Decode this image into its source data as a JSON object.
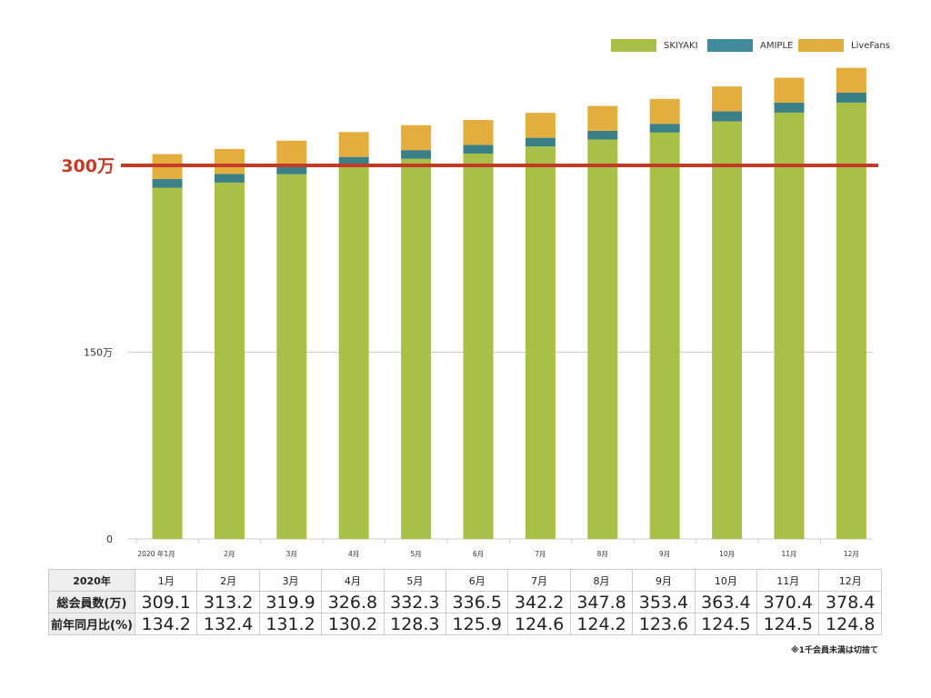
{
  "chart_data": {
    "type": "bar",
    "stacked": true,
    "categories": [
      "2020 年1月",
      "2月",
      "3月",
      "4月",
      "5月",
      "6月",
      "7月",
      "8月",
      "9月",
      "10月",
      "11月",
      "12月"
    ],
    "series": [
      {
        "name": "SKIYAKI",
        "color": "#a8c048",
        "values": [
          282.1,
          286.2,
          292.9,
          299.8,
          305.3,
          309.5,
          315.2,
          320.8,
          326.4,
          335.4,
          342.4,
          350.4
        ]
      },
      {
        "name": "AMIPLE",
        "color": "#3a8086",
        "values": [
          7,
          7,
          7,
          7,
          7,
          7,
          7,
          7,
          7,
          8,
          8,
          8
        ]
      },
      {
        "name": "LiveFans",
        "color": "#e3ae3e",
        "values": [
          20,
          20,
          20,
          20,
          20,
          20,
          20,
          20,
          20,
          20,
          20,
          20
        ]
      }
    ],
    "yticks": [
      {
        "value": 0,
        "label": "0"
      },
      {
        "value": 150,
        "label": "150万"
      }
    ],
    "reference_line": {
      "value": 300,
      "label": "300万",
      "color": "#c43a26"
    },
    "ylim": [
      0,
      400
    ],
    "legend": "top-right",
    "grid": true
  },
  "table": {
    "header": "2020年",
    "months": [
      "1月",
      "2月",
      "3月",
      "4月",
      "5月",
      "6月",
      "7月",
      "8月",
      "9月",
      "10月",
      "11月",
      "12月"
    ],
    "rows": [
      {
        "label": "総会員数(万)",
        "values": [
          "309.1",
          "313.2",
          "319.9",
          "326.8",
          "332.3",
          "336.5",
          "342.2",
          "347.8",
          "353.4",
          "363.4",
          "370.4",
          "378.4"
        ]
      },
      {
        "label": "前年同月比(%)",
        "values": [
          "134.2",
          "132.4",
          "131.2",
          "130.2",
          "128.3",
          "125.9",
          "124.6",
          "124.2",
          "123.6",
          "124.5",
          "124.5",
          "124.8"
        ]
      }
    ]
  },
  "note": "※1千会員未満は切捨て"
}
